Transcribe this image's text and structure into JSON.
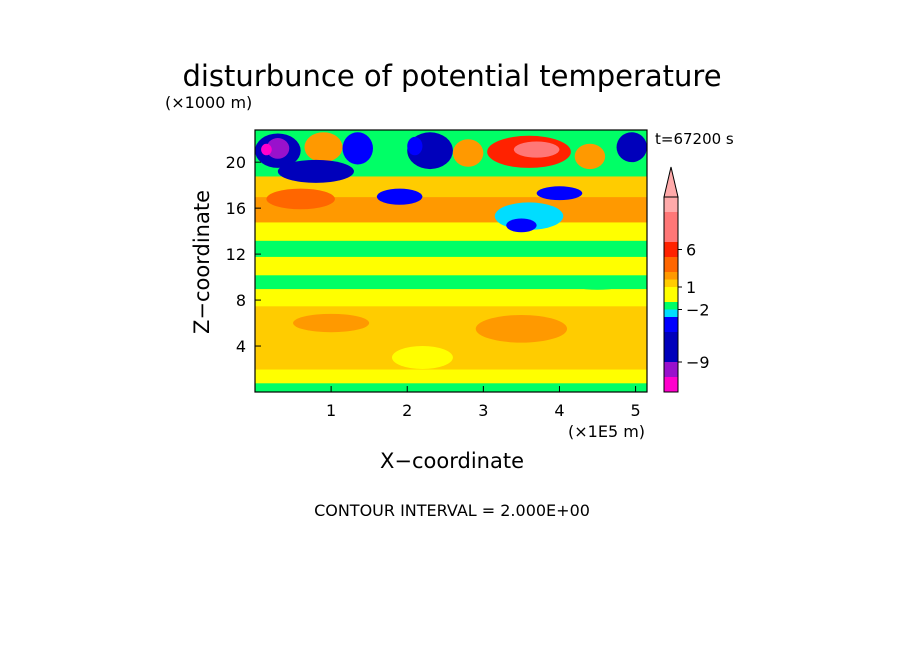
{
  "chart_data": {
    "type": "heatmap",
    "title": "disturbunce of potential temperature",
    "xlabel": "X−coordinate",
    "ylabel": "Z−coordinate",
    "x_unit": "(×1E5 m)",
    "y_unit": "(×1000 m)",
    "time_label": "t=67200 s",
    "footer": "CONTOUR INTERVAL = 2.000E+00",
    "xlim": [
      0,
      5.15
    ],
    "ylim": [
      0,
      22.8
    ],
    "x_ticks": [
      1,
      2,
      3,
      4,
      5
    ],
    "x_tick_labels": [
      "1",
      "2",
      "3",
      "4",
      "5"
    ],
    "y_ticks": [
      4,
      8,
      12,
      16,
      20
    ],
    "y_tick_labels": [
      "4",
      "8",
      "12",
      "16",
      "20"
    ],
    "colorbar": {
      "extend_max": true,
      "labels": [
        {
          "level": 6,
          "text": "6"
        },
        {
          "level": 1,
          "text": "1"
        },
        {
          "level": -2,
          "text": "−2"
        },
        {
          "level": -9,
          "text": "−9"
        }
      ],
      "bands": [
        {
          "color": "#ff00cc",
          "max": -11
        },
        {
          "color": "#9911cc",
          "max": -9
        },
        {
          "color": "#0000bb",
          "max": -5
        },
        {
          "color": "#0000ff",
          "max": -3
        },
        {
          "color": "#00ddff",
          "max": -2
        },
        {
          "color": "#00ff66",
          "max": -1
        },
        {
          "color": "#ffff00",
          "max": 1
        },
        {
          "color": "#ffcc00",
          "max": 2
        },
        {
          "color": "#ff9900",
          "max": 3
        },
        {
          "color": "#ff6600",
          "max": 5
        },
        {
          "color": "#ff2200",
          "max": 7
        },
        {
          "color": "#ff7777",
          "max": 11
        },
        {
          "color": "#ffaaaa",
          "max": 13
        }
      ]
    },
    "field": {
      "levels": [
        {
          "z": [
            0.0,
            0.8
          ],
          "band": 5
        },
        {
          "z": [
            0.8,
            2.0
          ],
          "band": 6
        },
        {
          "z": [
            2.0,
            5.5
          ],
          "band": 7
        },
        {
          "z": [
            5.5,
            7.5
          ],
          "band": 7
        },
        {
          "z": [
            7.5,
            9.0
          ],
          "band": 6
        },
        {
          "z": [
            9.0,
            10.2
          ],
          "band": 5
        },
        {
          "z": [
            10.2,
            11.8
          ],
          "band": 6
        },
        {
          "z": [
            11.8,
            13.2
          ],
          "band": 5
        },
        {
          "z": [
            13.2,
            14.8
          ],
          "band": 6
        },
        {
          "z": [
            14.8,
            17.0
          ],
          "band": 8
        },
        {
          "z": [
            17.0,
            18.8
          ],
          "band": 7
        },
        {
          "z": [
            18.8,
            22.8
          ],
          "band": 5
        }
      ],
      "features": [
        {
          "x": 0.3,
          "z": 21.0,
          "rx": 0.3,
          "rz": 1.5,
          "band": 2
        },
        {
          "x": 0.3,
          "z": 21.2,
          "rx": 0.15,
          "rz": 0.9,
          "band": 1
        },
        {
          "x": 0.15,
          "z": 21.1,
          "rx": 0.07,
          "rz": 0.5,
          "band": 0
        },
        {
          "x": 0.9,
          "z": 21.3,
          "rx": 0.25,
          "rz": 1.3,
          "band": 8
        },
        {
          "x": 1.35,
          "z": 21.2,
          "rx": 0.2,
          "rz": 1.4,
          "band": 3
        },
        {
          "x": 2.3,
          "z": 21.0,
          "rx": 0.3,
          "rz": 1.6,
          "band": 2
        },
        {
          "x": 2.1,
          "z": 21.4,
          "rx": 0.1,
          "rz": 0.8,
          "band": 3
        },
        {
          "x": 2.8,
          "z": 20.8,
          "rx": 0.2,
          "rz": 1.2,
          "band": 8
        },
        {
          "x": 3.6,
          "z": 20.9,
          "rx": 0.55,
          "rz": 1.4,
          "band": 10
        },
        {
          "x": 3.7,
          "z": 21.1,
          "rx": 0.3,
          "rz": 0.7,
          "band": 11
        },
        {
          "x": 4.4,
          "z": 20.5,
          "rx": 0.2,
          "rz": 1.1,
          "band": 8
        },
        {
          "x": 4.95,
          "z": 21.3,
          "rx": 0.2,
          "rz": 1.3,
          "band": 2
        },
        {
          "x": 0.8,
          "z": 19.2,
          "rx": 0.5,
          "rz": 1.0,
          "band": 2
        },
        {
          "x": 1.9,
          "z": 17.0,
          "rx": 0.3,
          "rz": 0.7,
          "band": 3
        },
        {
          "x": 3.6,
          "z": 15.3,
          "rx": 0.45,
          "rz": 1.2,
          "band": 4
        },
        {
          "x": 3.5,
          "z": 14.5,
          "rx": 0.2,
          "rz": 0.6,
          "band": 3
        },
        {
          "x": 4.0,
          "z": 17.3,
          "rx": 0.3,
          "rz": 0.6,
          "band": 3
        },
        {
          "x": 0.6,
          "z": 16.8,
          "rx": 0.45,
          "rz": 0.9,
          "band": 9
        },
        {
          "x": 1.0,
          "z": 6.0,
          "rx": 0.5,
          "rz": 0.8,
          "band": 8
        },
        {
          "x": 3.5,
          "z": 5.5,
          "rx": 0.6,
          "rz": 1.2,
          "band": 8
        },
        {
          "x": 2.2,
          "z": 3.0,
          "rx": 0.4,
          "rz": 1.0,
          "band": 6
        },
        {
          "x": 4.5,
          "z": 9.5,
          "rx": 0.4,
          "rz": 0.6,
          "band": 5
        }
      ]
    }
  }
}
